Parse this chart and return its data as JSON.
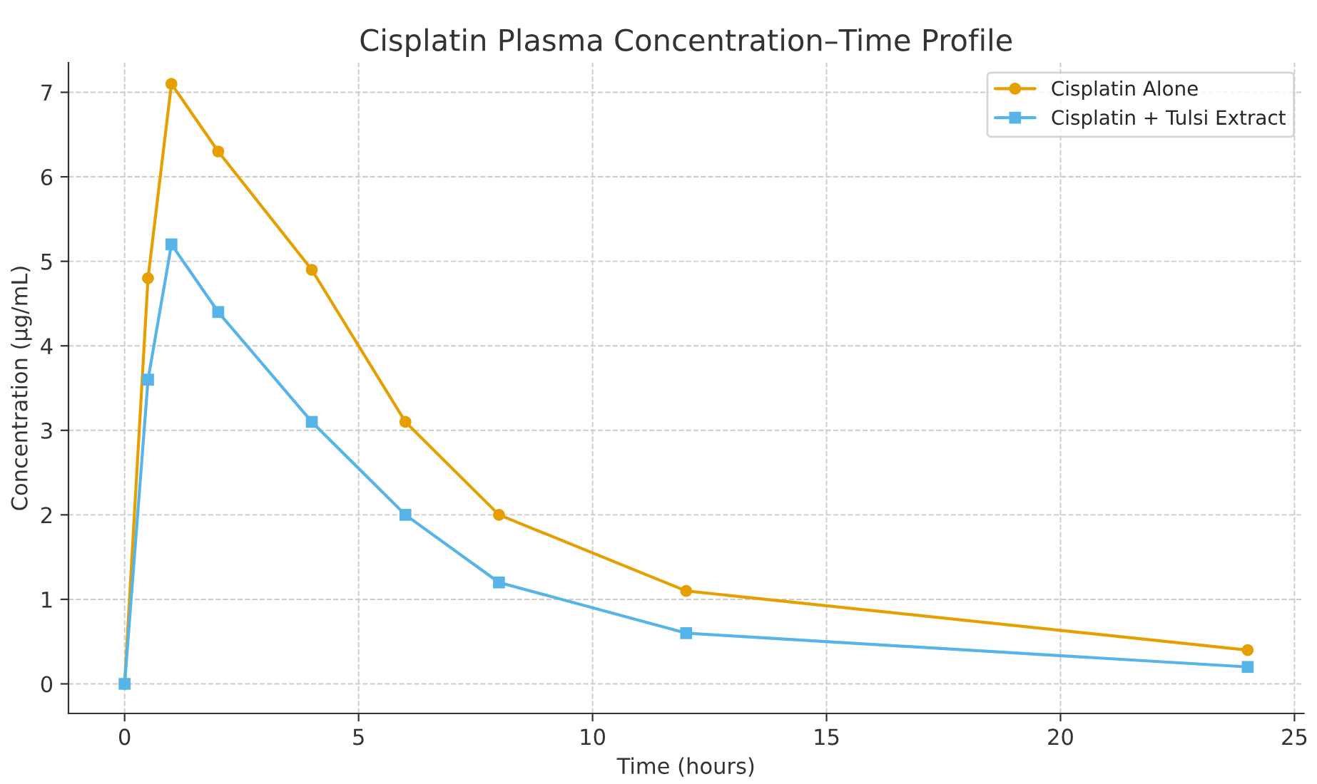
{
  "chart_data": {
    "type": "line",
    "title": "Cisplatin Plasma Concentration–Time Profile",
    "xlabel": "Time (hours)",
    "ylabel": "Concentration (µg/mL)",
    "x": [
      0,
      0.5,
      1,
      2,
      4,
      6,
      8,
      12,
      24
    ],
    "series": [
      {
        "name": "Cisplatin Alone",
        "color": "#e69f00",
        "marker": "circle",
        "values": [
          0,
          4.8,
          7.1,
          6.3,
          4.9,
          3.1,
          2.0,
          1.1,
          0.4
        ]
      },
      {
        "name": "Cisplatin + Tulsi Extract",
        "color": "#56b4e9",
        "marker": "square",
        "values": [
          0,
          3.6,
          5.2,
          4.4,
          3.1,
          2.0,
          1.2,
          0.6,
          0.2
        ]
      }
    ],
    "xlim": [
      -1.2,
      25.2
    ],
    "ylim": [
      -0.35,
      7.35
    ],
    "xticks": [
      0,
      5,
      10,
      15,
      20,
      25
    ],
    "yticks": [
      0,
      1,
      2,
      3,
      4,
      5,
      6,
      7
    ],
    "grid": true,
    "legend": "top right",
    "line_style": "solid"
  }
}
